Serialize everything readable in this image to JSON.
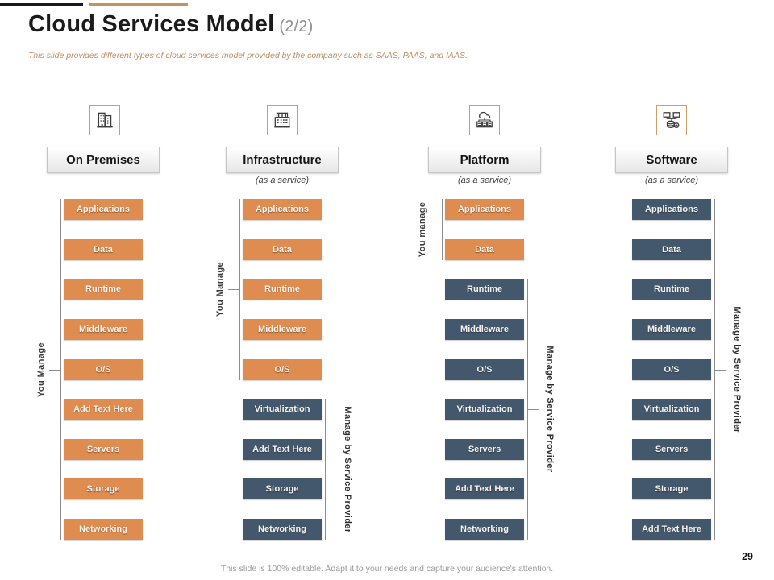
{
  "slide": {
    "title": "Cloud Services Model",
    "title_suffix": "(2/2)",
    "subtitle": "This slide provides different types of cloud services model  provided by the company such as SAAS, PAAS, and IAAS.",
    "footer": "This slide is 100% editable.  Adapt it to your needs and capture your audience's attention.",
    "page_number": "29"
  },
  "colors": {
    "you_manage_orange": "#DE8C4F",
    "provider_slate": "#44586D",
    "accent_black": "#1A1A1A",
    "accent_orange": "#C89157"
  },
  "legend": {
    "left_label_col1": "You Manage",
    "left_label_col2": "You Manage",
    "left_label_col3": "You manage",
    "right_label": "Manage by Service Provider"
  },
  "columns": [
    {
      "header": "On Premises",
      "as_a_service_label": "",
      "icon": "office-building-icon",
      "boxes": [
        {
          "label": "Applications",
          "type": "you"
        },
        {
          "label": "Data",
          "type": "you"
        },
        {
          "label": "Runtime",
          "type": "you"
        },
        {
          "label": "Middleware",
          "type": "you"
        },
        {
          "label": "O/S",
          "type": "you"
        },
        {
          "label": "Add Text Here",
          "type": "you"
        },
        {
          "label": "Servers",
          "type": "you"
        },
        {
          "label": "Storage",
          "type": "you"
        },
        {
          "label": "Networking",
          "type": "you"
        }
      ],
      "brackets": [
        {
          "side": "left",
          "label": "You Manage",
          "from": 0,
          "to": 8
        }
      ]
    },
    {
      "header": "Infrastructure",
      "as_a_service_label": "(as a service)",
      "icon": "infrastructure-building-icon",
      "boxes": [
        {
          "label": "Applications",
          "type": "you"
        },
        {
          "label": "Data",
          "type": "you"
        },
        {
          "label": "Runtime",
          "type": "you"
        },
        {
          "label": "Middleware",
          "type": "you"
        },
        {
          "label": "O/S",
          "type": "you"
        },
        {
          "label": "Virtualization",
          "type": "provider"
        },
        {
          "label": "Add Text Here",
          "type": "provider"
        },
        {
          "label": "Storage",
          "type": "provider"
        },
        {
          "label": "Networking",
          "type": "provider"
        }
      ],
      "brackets": [
        {
          "side": "left",
          "label": "You Manage",
          "from": 0,
          "to": 4
        },
        {
          "side": "right",
          "label": "Manage by Service Provider",
          "from": 5,
          "to": 8
        }
      ]
    },
    {
      "header": "Platform",
      "as_a_service_label": "(as a service)",
      "icon": "cloud-servers-icon",
      "boxes": [
        {
          "label": "Applications",
          "type": "you"
        },
        {
          "label": "Data",
          "type": "you"
        },
        {
          "label": "Runtime",
          "type": "provider"
        },
        {
          "label": "Middleware",
          "type": "provider"
        },
        {
          "label": "O/S",
          "type": "provider"
        },
        {
          "label": "Virtualization",
          "type": "provider"
        },
        {
          "label": "Servers",
          "type": "provider"
        },
        {
          "label": "Add Text Here",
          "type": "provider"
        },
        {
          "label": "Networking",
          "type": "provider"
        }
      ],
      "brackets": [
        {
          "side": "left",
          "label": "You manage",
          "from": 0,
          "to": 1
        },
        {
          "side": "right",
          "label": "Manage by Service Provider",
          "from": 2,
          "to": 8
        }
      ]
    },
    {
      "header": "Software",
      "as_a_service_label": "(as a service)",
      "icon": "monitors-database-icon",
      "boxes": [
        {
          "label": "Applications",
          "type": "provider"
        },
        {
          "label": "Data",
          "type": "provider"
        },
        {
          "label": "Runtime",
          "type": "provider"
        },
        {
          "label": "Middleware",
          "type": "provider"
        },
        {
          "label": "O/S",
          "type": "provider"
        },
        {
          "label": "Virtualization",
          "type": "provider"
        },
        {
          "label": "Servers",
          "type": "provider"
        },
        {
          "label": "Storage",
          "type": "provider"
        },
        {
          "label": "Add Text Here",
          "type": "provider"
        }
      ],
      "brackets": [
        {
          "side": "right",
          "label": "Manage by Service Provider",
          "from": 0,
          "to": 8
        }
      ]
    }
  ]
}
